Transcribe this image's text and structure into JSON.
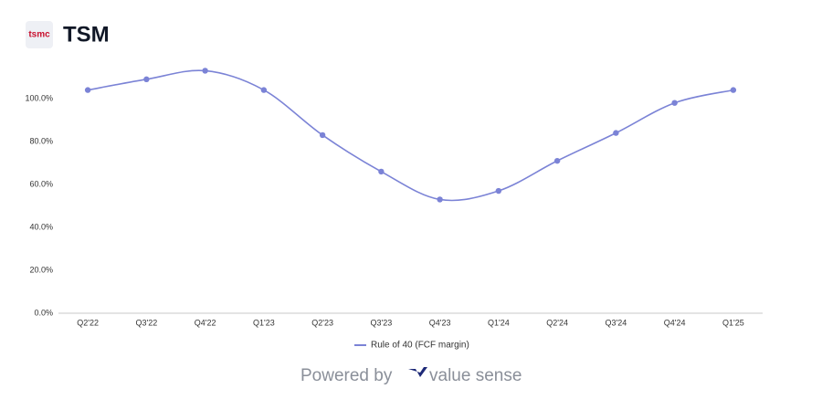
{
  "header": {
    "logo_text": "tsmc",
    "ticker": "TSM"
  },
  "chart_data": {
    "type": "line",
    "categories": [
      "Q2'22",
      "Q3'22",
      "Q4'22",
      "Q1'23",
      "Q2'23",
      "Q3'23",
      "Q4'23",
      "Q1'24",
      "Q2'24",
      "Q3'24",
      "Q4'24",
      "Q1'25"
    ],
    "series": [
      {
        "name": "Rule of 40 (FCF margin)",
        "color": "#7b83d6",
        "values": [
          104,
          109,
          113,
          104,
          83,
          66,
          53,
          57,
          71,
          84,
          98,
          104
        ]
      }
    ],
    "ylim": [
      0,
      120
    ],
    "yticks": [
      {
        "value": 0,
        "label": "0.0%"
      },
      {
        "value": 20,
        "label": "20.0%"
      },
      {
        "value": 40,
        "label": "40.0%"
      },
      {
        "value": 60,
        "label": "60.0%"
      },
      {
        "value": 80,
        "label": "80.0%"
      },
      {
        "value": 100,
        "label": "100.0%"
      }
    ],
    "legend": "bottom"
  },
  "footer": {
    "powered_by": "Powered by",
    "brand": "value sense"
  }
}
